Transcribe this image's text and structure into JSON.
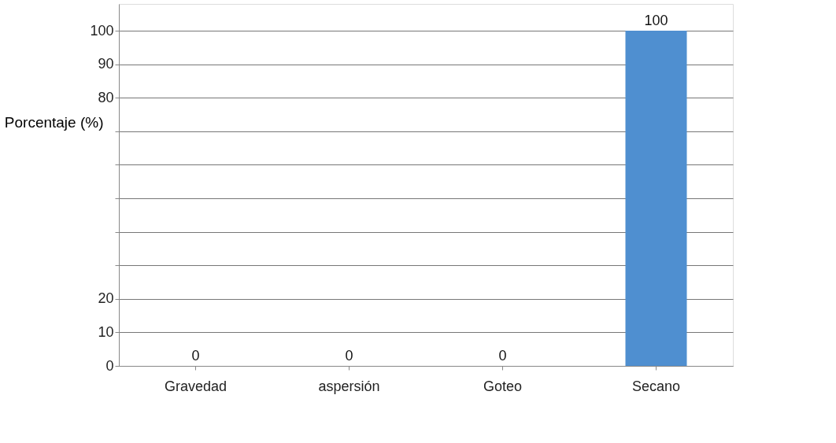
{
  "chart_data": {
    "type": "bar",
    "ylabel": "Porcentaje (%)",
    "categories": [
      "Gravedad",
      "aspersión",
      "Goteo",
      "Secano"
    ],
    "values": [
      0,
      0,
      0,
      100
    ],
    "color": "#4f8fd0",
    "ylim": [
      0,
      108
    ],
    "yticks": [
      0,
      10,
      20,
      {
        "value": 30,
        "label": null
      },
      {
        "value": 40,
        "label": null
      },
      {
        "value": 50,
        "label": null
      },
      {
        "value": 60,
        "label": null
      },
      {
        "value": 70,
        "label": null
      },
      80,
      90,
      100
    ],
    "grid": "y",
    "data_labels": true
  }
}
